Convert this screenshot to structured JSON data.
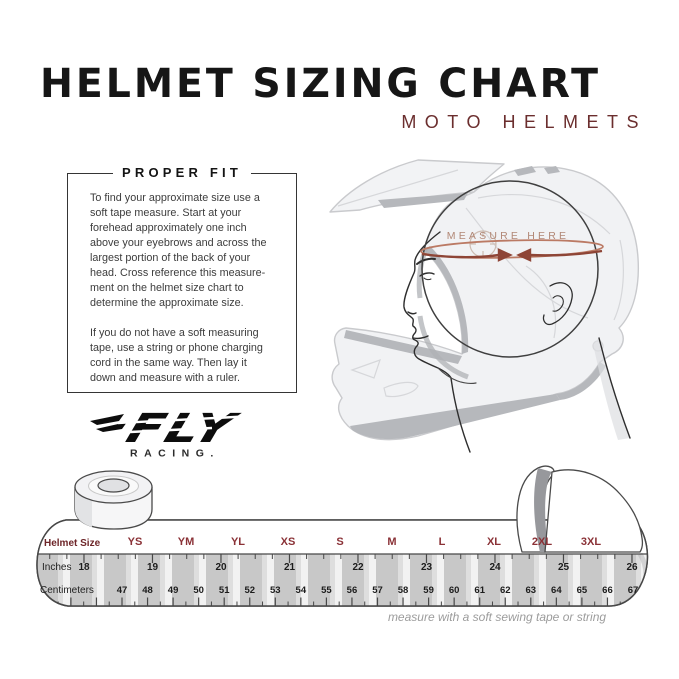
{
  "header": {
    "title": "HELMET SIZING CHART",
    "subtitle": "MOTO HELMETS"
  },
  "proper_fit": {
    "heading": "PROPER FIT",
    "paragraph1": "To find your approximate size use a\nsoft tape measure. Start at your\nforehead approximately one inch\nabove your eyebrows and across the\nlargest portion of the back of your\nhead. Cross reference this measure-\nment on the helmet size chart to\ndetermine the approximate size.",
    "paragraph2": "If you do not have a soft measuring\ntape, use a string or phone charging\ncord in the same way. Then lay it\ndown and measure with a ruler."
  },
  "brand": {
    "name": "FLY",
    "subname": "RACING."
  },
  "illustration": {
    "measure_label": "MEASURE HERE"
  },
  "tape": {
    "size_label": "Helmet Size",
    "sizes": [
      "YS",
      "YM",
      "YL",
      "XS",
      "S",
      "M",
      "L",
      "XL",
      "2XL",
      "3XL"
    ],
    "inches_label": "Inches",
    "inches": [
      "18",
      "19",
      "20",
      "21",
      "22",
      "23",
      "24",
      "25",
      "26"
    ],
    "cm_label": "Centimeters",
    "cm": [
      "47",
      "48",
      "49",
      "50",
      "51",
      "52",
      "53",
      "54",
      "55",
      "56",
      "57",
      "58",
      "59",
      "60",
      "61",
      "62",
      "63",
      "64",
      "65",
      "66",
      "67"
    ],
    "caption": "measure with a soft sewing tape or string"
  },
  "colors": {
    "maroon": "#6b2e2e",
    "size_red": "#8a3136",
    "size_label_red": "#6d2528",
    "number_ink": "#1c1c1c",
    "measure_text": "#b28876",
    "arrow": "#8e4536",
    "tape_outline": "#474747",
    "caption_gray": "#9c9c9c"
  }
}
